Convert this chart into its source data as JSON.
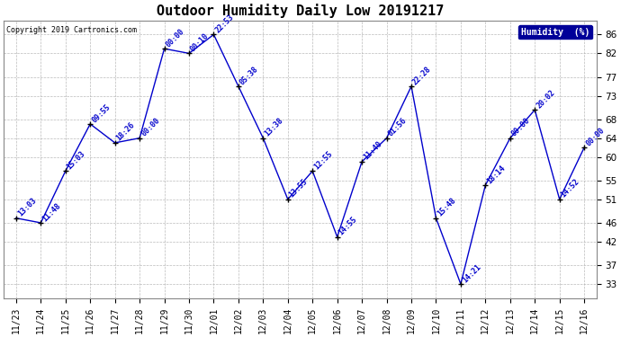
{
  "title": "Outdoor Humidity Daily Low 20191217",
  "copyright": "Copyright 2019 Cartronics.com",
  "legend_label": "Humidity  (%)",
  "categories": [
    "11/23",
    "11/24",
    "11/25",
    "11/26",
    "11/27",
    "11/28",
    "11/29",
    "11/30",
    "12/01",
    "12/02",
    "12/03",
    "12/04",
    "12/05",
    "12/06",
    "12/07",
    "12/08",
    "12/09",
    "12/10",
    "12/11",
    "12/12",
    "12/13",
    "12/14",
    "12/15",
    "12/16"
  ],
  "values": [
    47,
    46,
    57,
    67,
    63,
    64,
    83,
    82,
    86,
    75,
    64,
    51,
    57,
    43,
    59,
    64,
    75,
    47,
    33,
    54,
    64,
    70,
    51,
    62
  ],
  "times": [
    "13:03",
    "11:48",
    "15:03",
    "09:55",
    "18:26",
    "00:00",
    "00:00",
    "00:10",
    "22:53",
    "05:38",
    "13:38",
    "13:55",
    "12:55",
    "14:55",
    "11:40",
    "01:56",
    "22:28",
    "15:48",
    "14:21",
    "18:14",
    "00:00",
    "20:02",
    "14:52",
    "00:00"
  ],
  "ylim": [
    30,
    89
  ],
  "yticks": [
    33,
    37,
    42,
    46,
    51,
    55,
    60,
    64,
    68,
    73,
    77,
    82,
    86
  ],
  "line_color": "#0000cc",
  "marker_color": "#000000",
  "background_color": "#ffffff",
  "grid_color": "#aaaaaa",
  "title_fontsize": 11,
  "annotation_fontsize": 6.0,
  "xlabel_fontsize": 7,
  "ylabel_fontsize": 7.5,
  "copyright_fontsize": 6,
  "legend_bg": "#000099",
  "legend_fg": "#ffffff"
}
